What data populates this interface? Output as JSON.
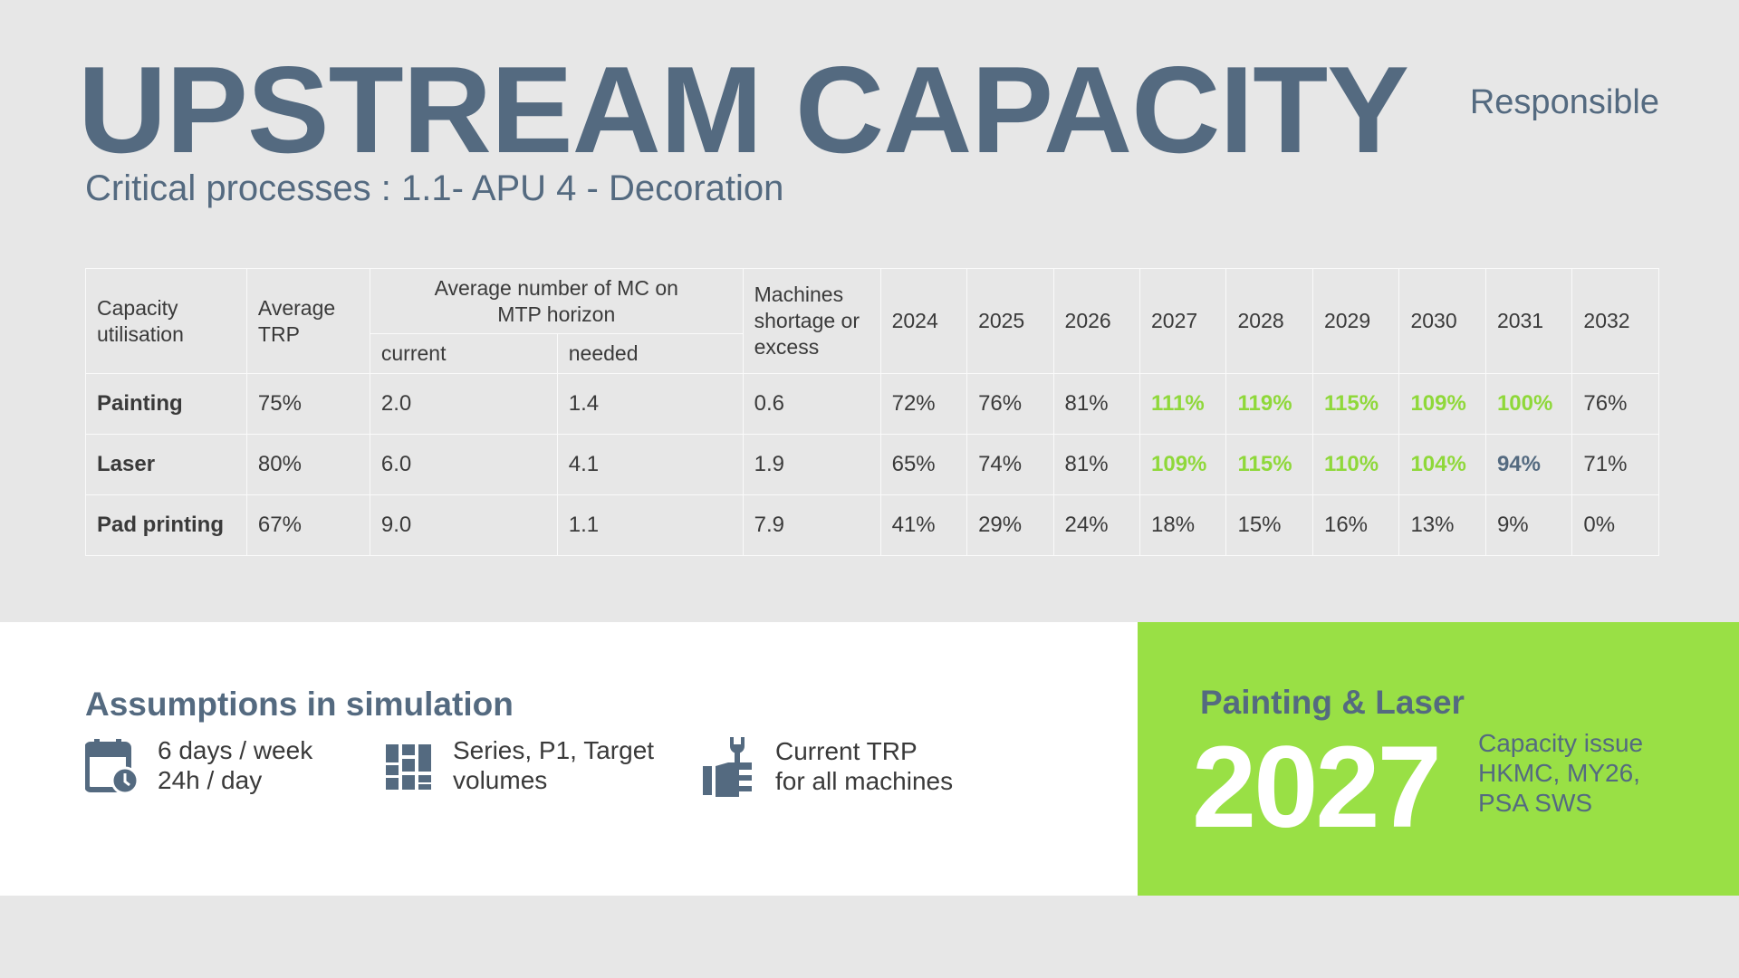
{
  "header": {
    "title": "UPSTREAM CAPACITY",
    "subtitle": "Critical processes : 1.1- APU 4 - Decoration",
    "responsible": "Responsible"
  },
  "table": {
    "headers": {
      "capacity": "Capacity utilisation",
      "trp": "Average TRP",
      "avg_mc": "Average number of MC  on MTP horizon",
      "current": "current",
      "needed": "needed",
      "shortage": "Machines shortage or excess",
      "years": [
        "2024",
        "2025",
        "2026",
        "2027",
        "2028",
        "2029",
        "2030",
        "2031",
        "2032"
      ]
    },
    "rows": [
      {
        "name": "Painting",
        "trp": "75%",
        "current": "2.0",
        "needed": "1.4",
        "shortage": "0.6",
        "years": [
          "72%",
          "76%",
          "81%",
          "111%",
          "119%",
          "115%",
          "109%",
          "100%",
          "76%"
        ],
        "status": [
          "n",
          "n",
          "n",
          "g",
          "g",
          "g",
          "g",
          "g",
          "n"
        ]
      },
      {
        "name": "Laser",
        "trp": "80%",
        "current": "6.0",
        "needed": "4.1",
        "shortage": "1.9",
        "years": [
          "65%",
          "74%",
          "81%",
          "109%",
          "115%",
          "110%",
          "104%",
          "94%",
          "71%"
        ],
        "status": [
          "n",
          "n",
          "n",
          "g",
          "g",
          "g",
          "g",
          "s",
          "n"
        ]
      },
      {
        "name": "Pad printing",
        "trp": "67%",
        "current": "9.0",
        "needed": "1.1",
        "shortage": "7.9",
        "years": [
          "41%",
          "29%",
          "24%",
          "18%",
          "15%",
          "16%",
          "13%",
          "9%",
          "0%"
        ],
        "status": [
          "n",
          "n",
          "n",
          "n",
          "n",
          "n",
          "n",
          "n",
          "n"
        ]
      }
    ]
  },
  "assumptions": {
    "title": "Assumptions  in simulation",
    "items": [
      {
        "icon": "calendar-clock-icon",
        "line1": "6 days / week",
        "line2": "24h / day"
      },
      {
        "icon": "grid-icon",
        "line1": "Series, P1, Target",
        "line2": "volumes"
      },
      {
        "icon": "thumbs-up-wrench-icon",
        "line1": "Current TRP",
        "line2": "for all machines"
      }
    ]
  },
  "highlight": {
    "title": "Painting & Laser",
    "year": "2027",
    "line1": "Capacity issue",
    "line2": "HKMC, MY26,",
    "line3": "PSA SWS"
  },
  "colors": {
    "slate": "#546a80",
    "green": "#99e045",
    "green_text": "#8fd83a"
  }
}
